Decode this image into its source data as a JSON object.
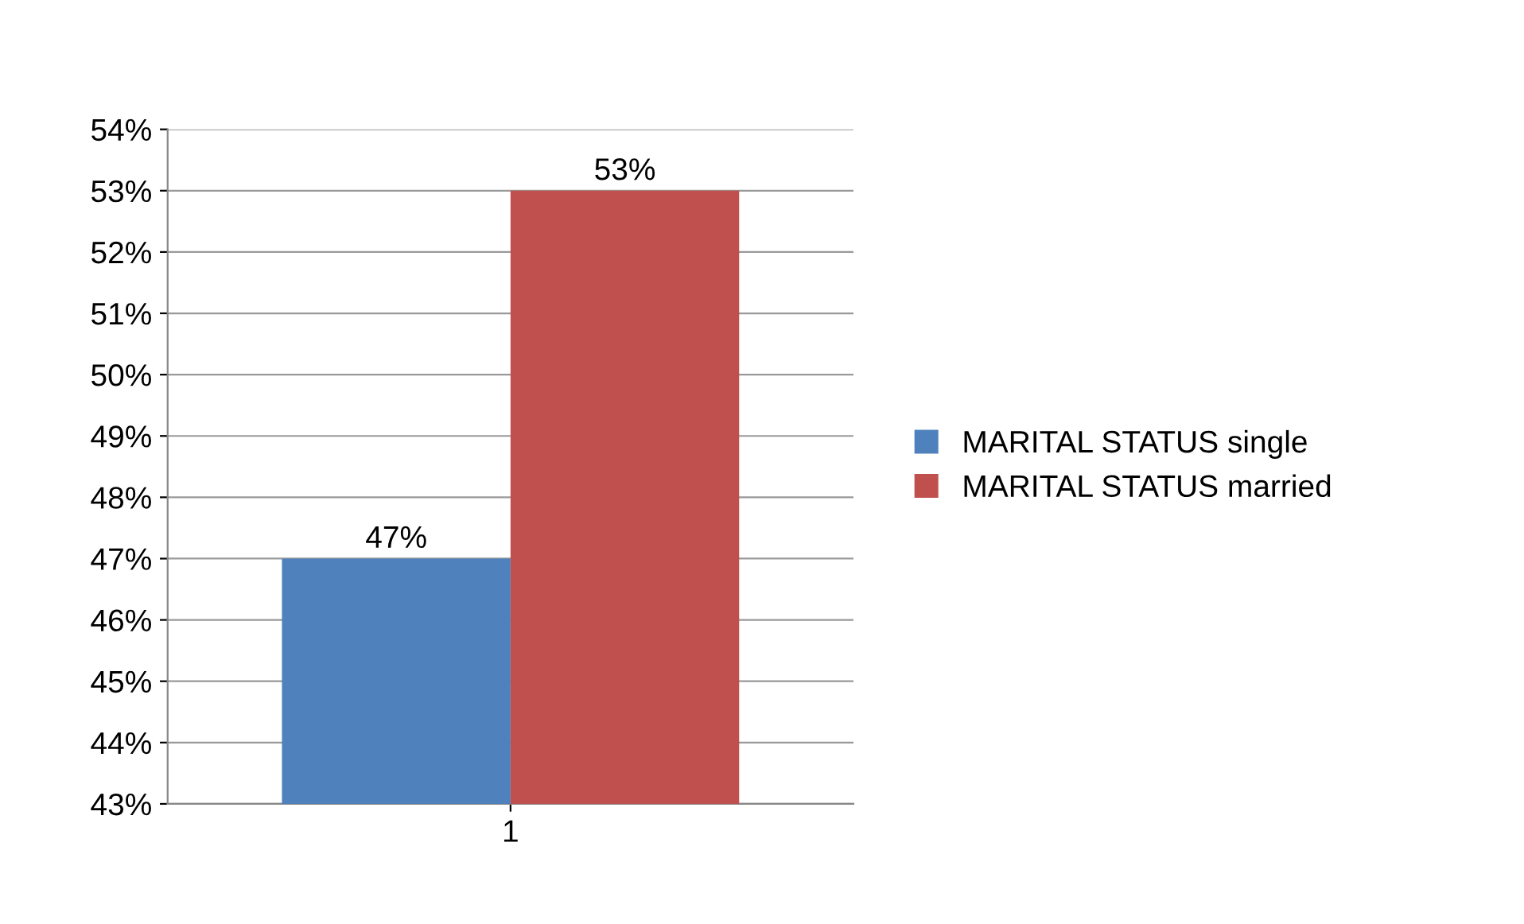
{
  "chart_data": {
    "type": "bar",
    "categories": [
      "1"
    ],
    "series": [
      {
        "name": "MARITAL STATUS single",
        "color": "#4f81bd",
        "values": [
          47
        ],
        "value_labels": [
          "47%"
        ]
      },
      {
        "name": "MARITAL STATUS married",
        "color": "#c0504d",
        "values": [
          53
        ],
        "value_labels": [
          "53%"
        ]
      }
    ],
    "ylim": [
      43,
      54
    ],
    "yticks": [
      {
        "value": 43,
        "label": "43%"
      },
      {
        "value": 44,
        "label": "44%"
      },
      {
        "value": 45,
        "label": "45%"
      },
      {
        "value": 46,
        "label": "46%"
      },
      {
        "value": 47,
        "label": "47%"
      },
      {
        "value": 48,
        "label": "48%"
      },
      {
        "value": 49,
        "label": "49%"
      },
      {
        "value": 50,
        "label": "50%"
      },
      {
        "value": 51,
        "label": "51%"
      },
      {
        "value": 52,
        "label": "52%"
      },
      {
        "value": 53,
        "label": "53%"
      },
      {
        "value": 54,
        "label": "54%"
      }
    ],
    "grid": "y",
    "legend": "right"
  }
}
